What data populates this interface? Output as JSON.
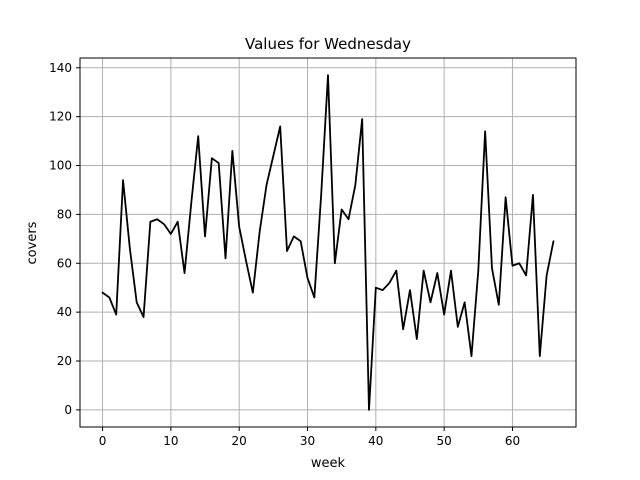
{
  "chart_data": {
    "type": "line",
    "title": "Values for Wednesday",
    "xlabel": "week",
    "ylabel": "covers",
    "xlim": [
      -3.3,
      69.3
    ],
    "ylim": [
      -7,
      144
    ],
    "xticks": [
      0,
      10,
      20,
      30,
      40,
      50,
      60
    ],
    "yticks": [
      0,
      20,
      40,
      60,
      80,
      100,
      120,
      140
    ],
    "grid": true,
    "legend": "none",
    "series": [
      {
        "color": "#000000",
        "x": [
          0,
          1,
          2,
          3,
          4,
          5,
          6,
          7,
          8,
          9,
          10,
          11,
          12,
          13,
          14,
          15,
          16,
          17,
          18,
          19,
          20,
          21,
          22,
          23,
          24,
          25,
          26,
          27,
          28,
          29,
          30,
          31,
          32,
          33,
          34,
          35,
          36,
          37,
          38,
          39,
          40,
          41,
          42,
          43,
          44,
          45,
          46,
          47,
          48,
          49,
          50,
          51,
          52,
          53,
          54,
          55,
          56,
          57,
          58,
          59,
          60,
          61,
          62,
          63,
          64,
          65,
          66
        ],
        "y": [
          48,
          46,
          39,
          94,
          66,
          44,
          38,
          77,
          78,
          76,
          72,
          77,
          56,
          85,
          112,
          71,
          103,
          101,
          62,
          106,
          75,
          61,
          48,
          73,
          92,
          104,
          116,
          65,
          71,
          69,
          54,
          46,
          88,
          137,
          60,
          82,
          78,
          92,
          119,
          0,
          50,
          49,
          52,
          57,
          33,
          49,
          29,
          57,
          44,
          56,
          39,
          57,
          34,
          44,
          22,
          57,
          114,
          58,
          43,
          87,
          59,
          60,
          55,
          88,
          22,
          55,
          69
        ]
      }
    ]
  }
}
